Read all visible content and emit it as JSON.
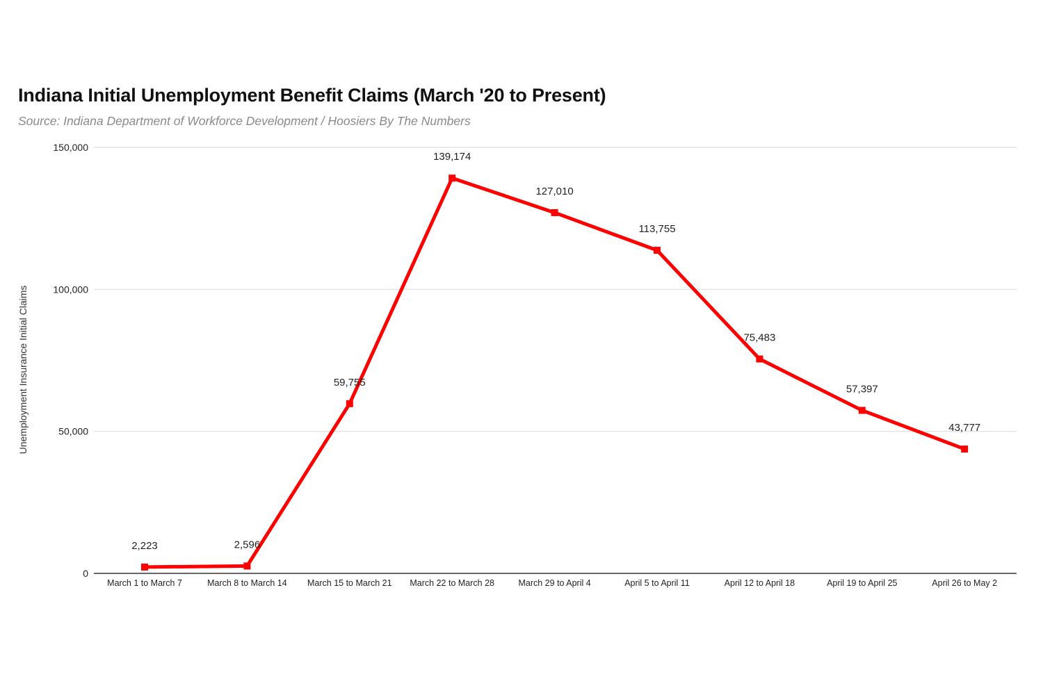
{
  "chart_data": {
    "type": "line",
    "title": "Indiana Initial Unemployment Benefit Claims (March '20 to Present)",
    "subtitle": "Source: Indiana Department of Workforce Development / Hoosiers By The Numbers",
    "xlabel": "",
    "ylabel": "Unemployment Insurance Initial Claims",
    "ylim": [
      0,
      150000
    ],
    "yticks": [
      0,
      50000,
      100000,
      150000
    ],
    "ytick_labels": [
      "0",
      "50,000",
      "100,000",
      "150,000"
    ],
    "categories": [
      "March 1 to March 7",
      "March 8 to March 14",
      "March 15 to March 21",
      "March 22 to March 28",
      "March 29 to April 4",
      "April 5 to April 11",
      "April 12 to April 18",
      "April 19 to April 25",
      "April 26 to May 2"
    ],
    "series": [
      {
        "values": [
          2223,
          2596,
          59755,
          139174,
          127010,
          113755,
          75483,
          57397,
          43777
        ],
        "data_labels": [
          "2,223",
          "2,596",
          "59,755",
          "139,174",
          "127,010",
          "113,755",
          "75,483",
          "57,397",
          "43,777"
        ],
        "color": "#ff0000"
      }
    ],
    "grid": true,
    "legend": "none"
  }
}
